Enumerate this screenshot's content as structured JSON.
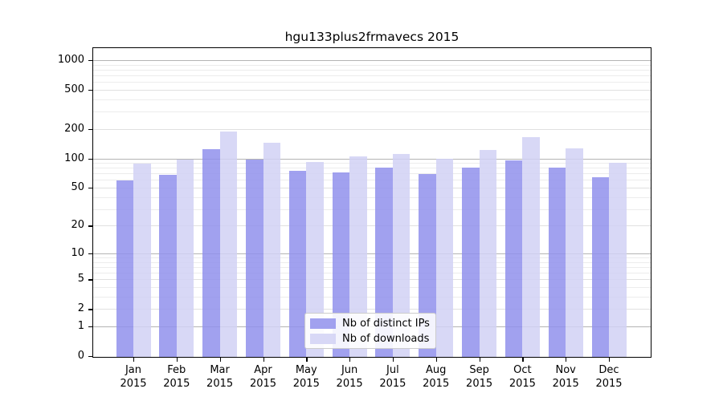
{
  "chart_data": {
    "type": "bar",
    "title": "hgu133plus2frmavecs 2015",
    "categories": [
      "Jan",
      "Feb",
      "Mar",
      "Apr",
      "May",
      "Jun",
      "Jul",
      "Aug",
      "Sep",
      "Oct",
      "Nov",
      "Dec"
    ],
    "year_label": "2015",
    "series": [
      {
        "name": "Nb of distinct IPs",
        "color": "rgba(144,144,236,0.85)",
        "color_hex": "#a1a1ef",
        "values": [
          59,
          68,
          124,
          98,
          75,
          72,
          81,
          69,
          81,
          95,
          80,
          64
        ]
      },
      {
        "name": "Nb of downloads",
        "color": "rgba(209,209,245,0.85)",
        "color_hex": "#d9d9f7",
        "values": [
          89,
          97,
          187,
          145,
          92,
          105,
          110,
          99,
          122,
          165,
          126,
          90
        ]
      }
    ],
    "yscale": "log10(value+1)",
    "yticks": [
      0,
      1,
      2,
      5,
      10,
      20,
      50,
      100,
      200,
      500,
      1000
    ],
    "ylim": [
      0,
      1100
    ],
    "grid": "horizontal, log minor + major",
    "grid_colors": {
      "major": "#b4b4b4",
      "mid": "#e0e0e0",
      "minor": "#ececec"
    },
    "legend_position": "inside bottom-center"
  }
}
